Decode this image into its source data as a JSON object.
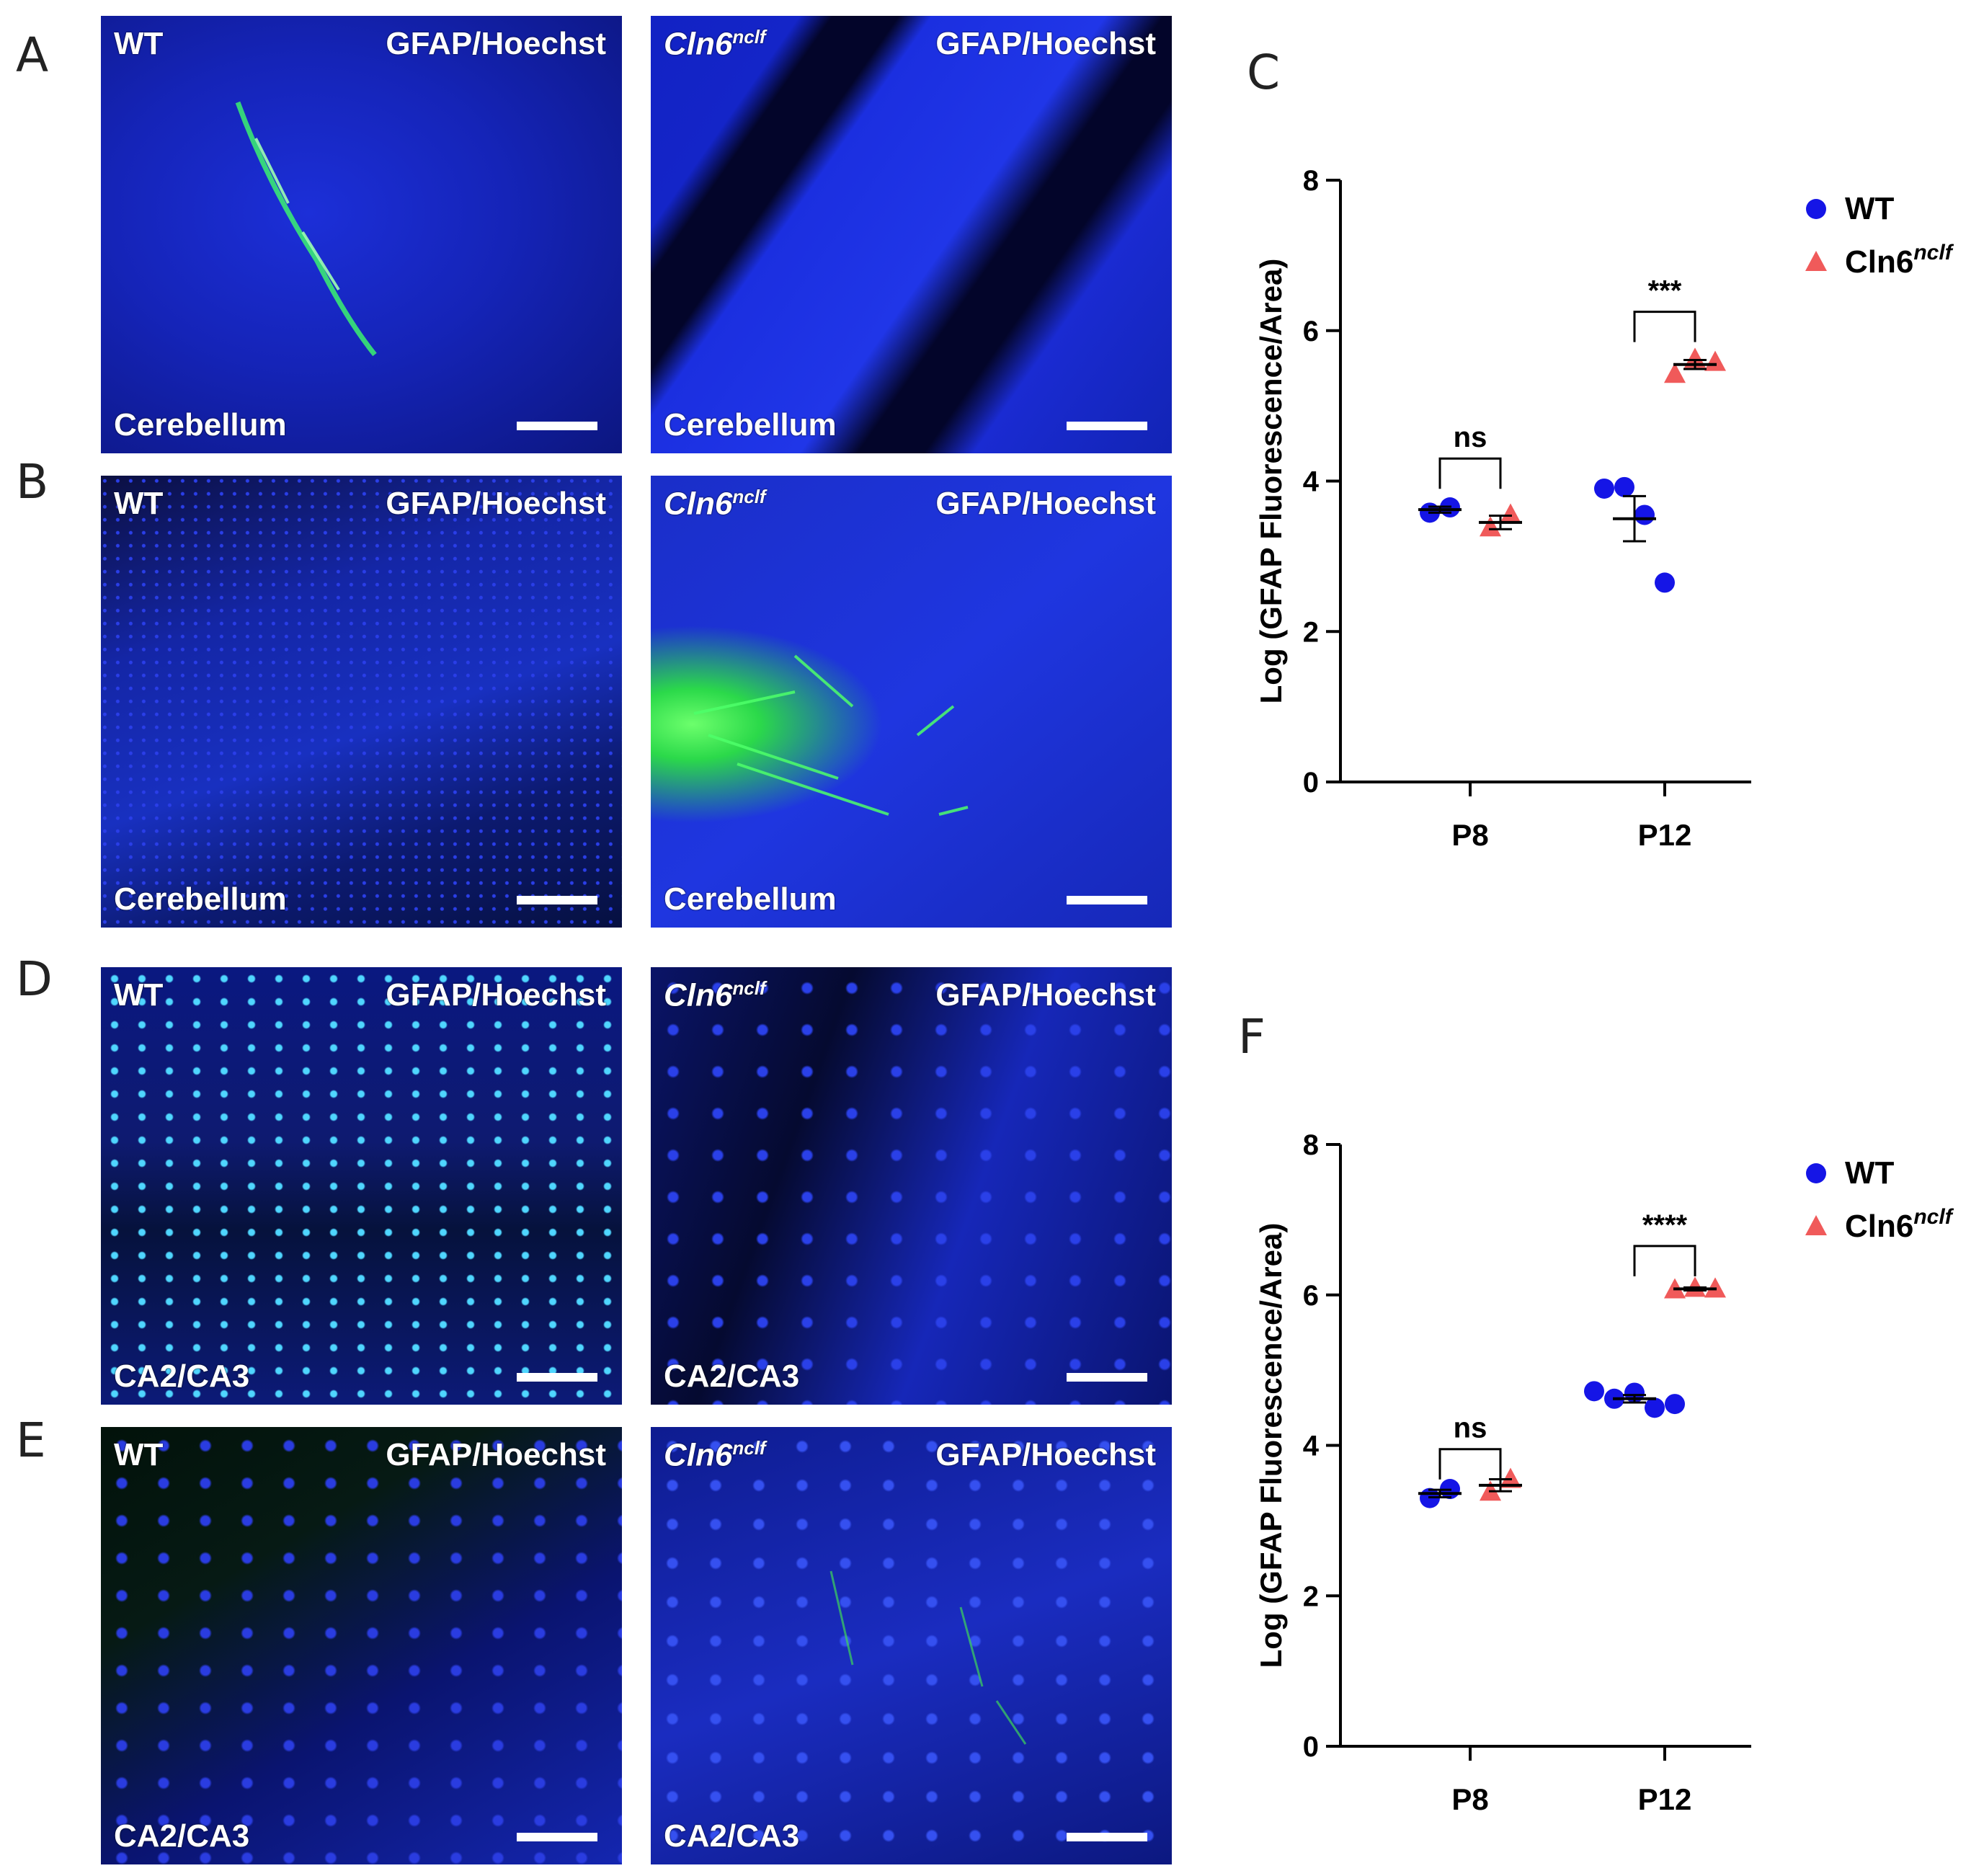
{
  "panel_letters": {
    "A": "A",
    "B": "B",
    "C": "C",
    "D": "D",
    "E": "E",
    "F": "F"
  },
  "micrographs": [
    {
      "id": "A-wt",
      "genotype": "WT",
      "genotype_italic": false,
      "genotype_sup": "",
      "stain": "GFAP/Hoechst",
      "region": "Cerebellum",
      "style": "wt-cerebellum-a"
    },
    {
      "id": "A-cln6",
      "genotype": "Cln6",
      "genotype_italic": true,
      "genotype_sup": "nclf",
      "stain": "GFAP/Hoechst",
      "region": "Cerebellum",
      "style": "cln6-cerebellum-a"
    },
    {
      "id": "B-wt",
      "genotype": "WT",
      "genotype_italic": false,
      "genotype_sup": "",
      "stain": "GFAP/Hoechst",
      "region": "Cerebellum",
      "style": "wt-cerebellum-b"
    },
    {
      "id": "B-cln6",
      "genotype": "Cln6",
      "genotype_italic": true,
      "genotype_sup": "nclf",
      "stain": "GFAP/Hoechst",
      "region": "Cerebellum",
      "style": "cln6-cerebellum-b"
    },
    {
      "id": "D-wt",
      "genotype": "WT",
      "genotype_italic": false,
      "genotype_sup": "",
      "stain": "GFAP/Hoechst",
      "region": "CA2/CA3",
      "style": "wt-hippo-d"
    },
    {
      "id": "D-cln6",
      "genotype": "Cln6",
      "genotype_italic": true,
      "genotype_sup": "nclf",
      "stain": "GFAP/Hoechst",
      "region": "CA2/CA3",
      "style": "cln6-hippo-d"
    },
    {
      "id": "E-wt",
      "genotype": "WT",
      "genotype_italic": false,
      "genotype_sup": "",
      "stain": "GFAP/Hoechst",
      "region": "CA2/CA3",
      "style": "wt-hippo-e"
    },
    {
      "id": "E-cln6",
      "genotype": "Cln6",
      "genotype_italic": true,
      "genotype_sup": "nclf",
      "stain": "GFAP/Hoechst",
      "region": "CA2/CA3",
      "style": "cln6-hippo-e"
    }
  ],
  "chart_data": [
    {
      "panel": "C",
      "type": "scatter",
      "title": "",
      "xlabel": "",
      "ylabel": "Log (GFAP Fluorescence/Area)",
      "categories": [
        "P8",
        "P12"
      ],
      "ylim": [
        0,
        8
      ],
      "yticks": [
        0,
        2,
        4,
        6,
        8
      ],
      "grid": false,
      "legend_position": "top-right",
      "series": [
        {
          "name": "WT",
          "name_sup": "",
          "marker": "circle",
          "color": "#1515e6",
          "points": {
            "P8": [
              3.58,
              3.65
            ],
            "P12": [
              3.9,
              3.92,
              3.55,
              2.65
            ]
          },
          "mean": {
            "P8": 3.62,
            "P12": 3.5
          },
          "sem": {
            "P8": 0.04,
            "P12": 0.3
          }
        },
        {
          "name": "Cln6",
          "name_sup": "nclf",
          "marker": "triangle",
          "color": "#f05a5a",
          "points": {
            "P8": [
              3.38,
              3.55
            ],
            "P12": [
              5.42,
              5.62,
              5.58
            ]
          },
          "mean": {
            "P8": 3.45,
            "P12": 5.55
          },
          "sem": {
            "P8": 0.09,
            "P12": 0.06
          }
        }
      ],
      "annotations": [
        {
          "category": "P8",
          "label": "ns",
          "y": 4.3
        },
        {
          "category": "P12",
          "label": "***",
          "y": 6.25
        }
      ]
    },
    {
      "panel": "F",
      "type": "scatter",
      "title": "",
      "xlabel": "",
      "ylabel": "Log (GFAP Fluorescence/Area)",
      "categories": [
        "P8",
        "P12"
      ],
      "ylim": [
        0,
        8
      ],
      "yticks": [
        0,
        2,
        4,
        6,
        8
      ],
      "grid": false,
      "legend_position": "top-right",
      "series": [
        {
          "name": "WT",
          "name_sup": "",
          "marker": "circle",
          "color": "#1515e6",
          "points": {
            "P8": [
              3.3,
              3.42
            ],
            "P12": [
              4.72,
              4.62,
              4.7,
              4.5,
              4.55
            ]
          },
          "mean": {
            "P8": 3.36,
            "P12": 4.62
          },
          "sem": {
            "P8": 0.05,
            "P12": 0.05
          }
        },
        {
          "name": "Cln6",
          "name_sup": "nclf",
          "marker": "triangle",
          "color": "#f05a5a",
          "points": {
            "P8": [
              3.38,
              3.55
            ],
            "P12": [
              6.07,
              6.09,
              6.08
            ]
          },
          "mean": {
            "P8": 3.47,
            "P12": 6.08
          },
          "sem": {
            "P8": 0.08,
            "P12": 0.02
          }
        }
      ],
      "annotations": [
        {
          "category": "P8",
          "label": "ns",
          "y": 3.95
        },
        {
          "category": "P12",
          "label": "****",
          "y": 6.65
        }
      ]
    }
  ]
}
